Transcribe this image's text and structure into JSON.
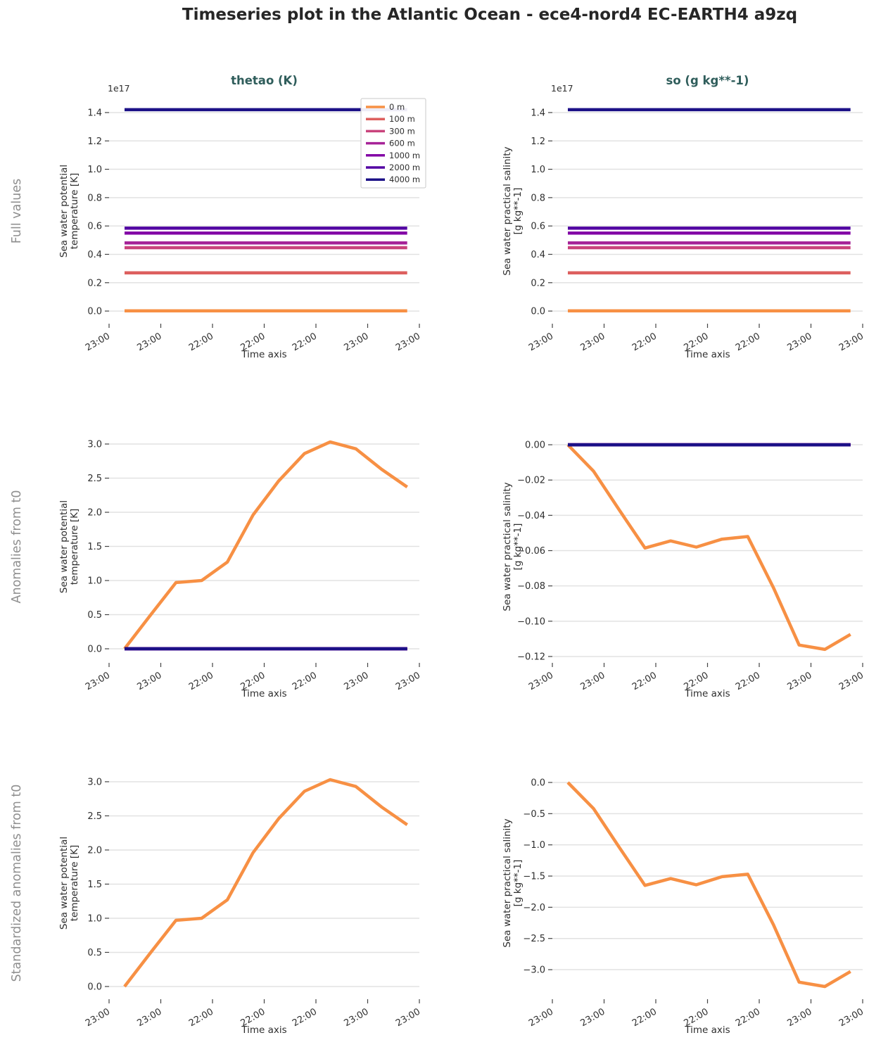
{
  "page_title": "Timeseries plot in the Atlantic Ocean - ece4-nord4 EC-EARTH4 a9zq",
  "rows": [
    {
      "label": "Full values"
    },
    {
      "label": "Anomalies from t0"
    },
    {
      "label": "Standardized anomalies from t0"
    }
  ],
  "colors": {
    "title": "#262626",
    "subplot_title": "#2f5d5b",
    "row_label": "#8f8f8f",
    "tick": "#2e2e2e",
    "grid": "#e2e2e2",
    "axis": "#444444"
  },
  "palette": {
    "0 m": "#f79044",
    "100 m": "#dd5f5e",
    "300 m": "#c9437c",
    "600 m": "#a62398",
    "1000 m": "#8306a6",
    "2000 m": "#5302a3",
    "4000 m": "#1c1187"
  },
  "legend": {
    "labels": [
      "0 m",
      "100 m",
      "300 m",
      "600 m",
      "1000 m",
      "2000 m",
      "4000 m"
    ]
  },
  "x_axis": {
    "ticklabels": [
      "23:00",
      "23:00",
      "22:00",
      "22:00",
      "22:00",
      "23:00",
      "23:00"
    ],
    "label": "Time axis"
  },
  "chart_data": [
    {
      "id": "full-thetao",
      "type": "line",
      "row": 0,
      "col": 0,
      "title": "thetao (K)",
      "ylabel": [
        "Sea water potential",
        "temperature [K]"
      ],
      "offset_label": "1e17",
      "xlabel": "Time axis",
      "x_ticklabels": [
        "23:00",
        "23:00",
        "22:00",
        "22:00",
        "22:00",
        "23:00",
        "23:00"
      ],
      "yticks": [
        0.0,
        0.2,
        0.4,
        0.6,
        0.8,
        1.0,
        1.2,
        1.4
      ],
      "ytick_labels": [
        "0.0",
        "0.2",
        "0.4",
        "0.6",
        "0.8",
        "1.0",
        "1.2",
        "1.4"
      ],
      "ylim": [
        -0.089,
        1.499
      ],
      "legend": true,
      "series": [
        {
          "name": "0 m",
          "constant": 0.002
        },
        {
          "name": "100 m",
          "constant": 0.27
        },
        {
          "name": "300 m",
          "constant": 0.447
        },
        {
          "name": "600 m",
          "constant": 0.48
        },
        {
          "name": "1000 m",
          "constant": 0.55
        },
        {
          "name": "2000 m",
          "constant": 0.585
        },
        {
          "name": "4000 m",
          "constant": 1.42
        }
      ]
    },
    {
      "id": "full-so",
      "type": "line",
      "row": 0,
      "col": 1,
      "title": "so (g kg**-1)",
      "ylabel": [
        "Sea water practical salinity",
        "[g kg**-1]"
      ],
      "offset_label": "1e17",
      "xlabel": "Time axis",
      "x_ticklabels": [
        "23:00",
        "23:00",
        "22:00",
        "22:00",
        "22:00",
        "23:00",
        "23:00"
      ],
      "yticks": [
        0.0,
        0.2,
        0.4,
        0.6,
        0.8,
        1.0,
        1.2,
        1.4
      ],
      "ytick_labels": [
        "0.0",
        "0.2",
        "0.4",
        "0.6",
        "0.8",
        "1.0",
        "1.2",
        "1.4"
      ],
      "ylim": [
        -0.089,
        1.499
      ],
      "legend": false,
      "series": [
        {
          "name": "0 m",
          "constant": 0.002
        },
        {
          "name": "100 m",
          "constant": 0.27
        },
        {
          "name": "300 m",
          "constant": 0.447
        },
        {
          "name": "600 m",
          "constant": 0.48
        },
        {
          "name": "1000 m",
          "constant": 0.55
        },
        {
          "name": "2000 m",
          "constant": 0.585
        },
        {
          "name": "4000 m",
          "constant": 1.42
        }
      ]
    },
    {
      "id": "anom-thetao",
      "type": "line",
      "row": 1,
      "col": 0,
      "title": "",
      "ylabel": [
        "Sea water potential",
        "temperature [K]"
      ],
      "offset_label": "",
      "xlabel": "Time axis",
      "x_ticklabels": [
        "23:00",
        "23:00",
        "22:00",
        "22:00",
        "22:00",
        "23:00",
        "23:00"
      ],
      "yticks": [
        0.0,
        0.5,
        1.0,
        1.5,
        2.0,
        2.5,
        3.0
      ],
      "ytick_labels": [
        "0.0",
        "0.5",
        "1.0",
        "1.5",
        "2.0",
        "2.5",
        "3.0"
      ],
      "ylim": [
        -0.206,
        3.196
      ],
      "legend": false,
      "series": [
        {
          "name": "0 m",
          "values": [
            0.0,
            0.49,
            0.97,
            1.0,
            1.27,
            1.96,
            2.46,
            2.86,
            3.03,
            2.93,
            2.63,
            2.37
          ]
        },
        {
          "name": "100 m",
          "constant": 0.0
        },
        {
          "name": "300 m",
          "constant": 0.0
        },
        {
          "name": "600 m",
          "constant": 0.0
        },
        {
          "name": "1000 m",
          "constant": 0.0
        },
        {
          "name": "2000 m",
          "constant": 0.0
        },
        {
          "name": "4000 m",
          "constant": 0.0
        }
      ]
    },
    {
      "id": "anom-so",
      "type": "line",
      "row": 1,
      "col": 1,
      "title": "",
      "ylabel": [
        "Sea water practical salinity",
        "[g kg**-1]"
      ],
      "offset_label": "",
      "xlabel": "Time axis",
      "x_ticklabels": [
        "23:00",
        "23:00",
        "22:00",
        "22:00",
        "22:00",
        "23:00",
        "23:00"
      ],
      "yticks": [
        0.0,
        -0.02,
        -0.04,
        -0.06,
        -0.08,
        -0.1,
        -0.12
      ],
      "ytick_labels": [
        "0.00",
        "−0.02",
        "−0.04",
        "−0.06",
        "−0.08",
        "−0.10",
        "−0.12"
      ],
      "ylim": [
        -0.1236,
        0.008
      ],
      "legend": false,
      "series": [
        {
          "name": "0 m",
          "values": [
            0.0,
            -0.015,
            -0.037,
            -0.0585,
            -0.0545,
            -0.058,
            -0.0535,
            -0.052,
            -0.081,
            -0.1135,
            -0.116,
            -0.1075
          ]
        },
        {
          "name": "100 m",
          "constant": 0.0
        },
        {
          "name": "300 m",
          "constant": 0.0
        },
        {
          "name": "600 m",
          "constant": 0.0
        },
        {
          "name": "1000 m",
          "constant": 0.0
        },
        {
          "name": "2000 m",
          "constant": 0.0
        },
        {
          "name": "4000 m",
          "constant": 0.0
        }
      ]
    },
    {
      "id": "std-thetao",
      "type": "line",
      "row": 2,
      "col": 0,
      "title": "",
      "ylabel": [
        "Sea water potential",
        "temperature [K]"
      ],
      "offset_label": "",
      "xlabel": "Time axis",
      "x_ticklabels": [
        "23:00",
        "23:00",
        "22:00",
        "22:00",
        "22:00",
        "23:00",
        "23:00"
      ],
      "yticks": [
        0.0,
        0.5,
        1.0,
        1.5,
        2.0,
        2.5,
        3.0
      ],
      "ytick_labels": [
        "0.0",
        "0.5",
        "1.0",
        "1.5",
        "2.0",
        "2.5",
        "3.0"
      ],
      "ylim": [
        -0.186,
        3.216
      ],
      "legend": false,
      "series": [
        {
          "name": "0 m",
          "values": [
            0.0,
            0.49,
            0.97,
            1.0,
            1.27,
            1.96,
            2.46,
            2.86,
            3.03,
            2.93,
            2.63,
            2.37
          ]
        }
      ]
    },
    {
      "id": "std-so",
      "type": "line",
      "row": 2,
      "col": 1,
      "title": "",
      "ylabel": [
        "Sea water practical salinity",
        "[g kg**-1]"
      ],
      "offset_label": "",
      "xlabel": "Time axis",
      "x_ticklabels": [
        "23:00",
        "23:00",
        "22:00",
        "22:00",
        "22:00",
        "23:00",
        "23:00"
      ],
      "yticks": [
        0.0,
        -0.5,
        -1.0,
        -1.5,
        -2.0,
        -2.5,
        -3.0
      ],
      "ytick_labels": [
        "0.0",
        "−0.5",
        "−1.0",
        "−1.5",
        "−2.0",
        "−2.5",
        "−3.0"
      ],
      "ylim": [
        -3.473,
        0.248
      ],
      "legend": false,
      "series": [
        {
          "name": "0 m",
          "values": [
            0.0,
            -0.42,
            -1.04,
            -1.65,
            -1.54,
            -1.64,
            -1.51,
            -1.47,
            -2.28,
            -3.2,
            -3.27,
            -3.03
          ]
        }
      ]
    }
  ]
}
